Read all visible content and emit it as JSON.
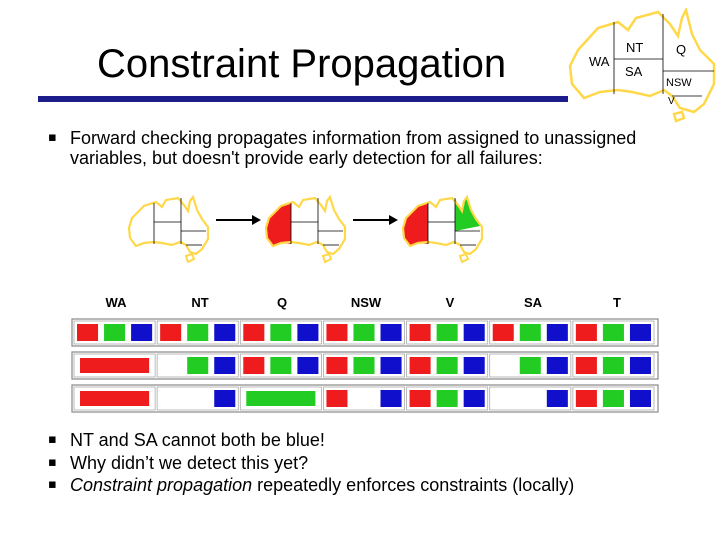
{
  "slide": {
    "title": "Constraint Propagation",
    "bullets_top": [
      {
        "text": "Forward checking propagates information from assigned to unassigned variables, but doesn't provide early detection for all failures:"
      }
    ],
    "bullets_bottom": [
      {
        "text": "NT and SA cannot both be blue!"
      },
      {
        "text": "Why didn’t we detect this yet?"
      },
      {
        "italic": "Constraint propagation",
        "text": " repeatedly enforces constraints (locally)"
      }
    ]
  },
  "australia_map": {
    "regions": [
      {
        "id": "WA",
        "label": "WA"
      },
      {
        "id": "NT",
        "label": "NT"
      },
      {
        "id": "SA",
        "label": "SA"
      },
      {
        "id": "Q",
        "label": "Q"
      },
      {
        "id": "NSW",
        "label": "NSW"
      },
      {
        "id": "V",
        "label": "V"
      }
    ]
  },
  "progress_maps": {
    "colors": {
      "red": "#ee1c1c",
      "green": "#22cc22",
      "outline": "#ffd84a"
    },
    "steps": [
      {
        "fills": {}
      },
      {
        "fills": {
          "WA": "red"
        }
      },
      {
        "fills": {
          "WA": "red",
          "Q": "green"
        }
      }
    ]
  },
  "domain_table": {
    "columns": [
      "WA",
      "NT",
      "Q",
      "NSW",
      "V",
      "SA",
      "T"
    ],
    "colors": {
      "r": "#ee1c1c",
      "g": "#22cc22",
      "b": "#1010cc"
    },
    "rows": [
      [
        [
          "r",
          "g",
          "b"
        ],
        [
          "r",
          "g",
          "b"
        ],
        [
          "r",
          "g",
          "b"
        ],
        [
          "r",
          "g",
          "b"
        ],
        [
          "r",
          "g",
          "b"
        ],
        [
          "r",
          "g",
          "b"
        ],
        [
          "r",
          "g",
          "b"
        ]
      ],
      [
        [
          "r"
        ],
        [
          "g",
          "b"
        ],
        [
          "r",
          "g",
          "b"
        ],
        [
          "r",
          "g",
          "b"
        ],
        [
          "r",
          "g",
          "b"
        ],
        [
          "g",
          "b"
        ],
        [
          "r",
          "g",
          "b"
        ]
      ],
      [
        [
          "r"
        ],
        [
          "b"
        ],
        [
          "g"
        ],
        [
          "r",
          "b"
        ],
        [
          "r",
          "g",
          "b"
        ],
        [
          "b"
        ],
        [
          "r",
          "g",
          "b"
        ]
      ]
    ]
  }
}
